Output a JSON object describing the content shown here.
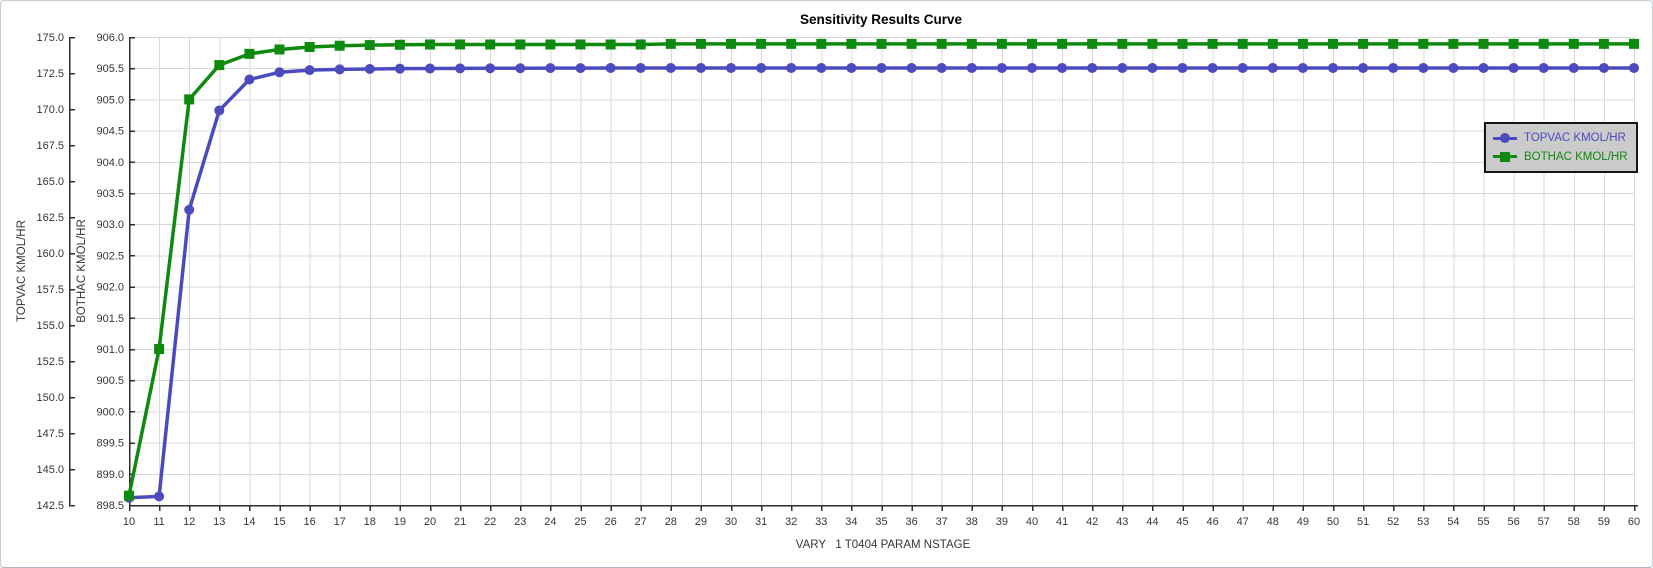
{
  "chart_data": {
    "type": "line",
    "title": "Sensitivity Results Curve",
    "xlabel": "VARY   1 T0404 PARAM NSTAGE",
    "x": [
      10,
      11,
      12,
      13,
      14,
      15,
      16,
      17,
      18,
      19,
      20,
      21,
      22,
      23,
      24,
      25,
      26,
      27,
      28,
      29,
      30,
      31,
      32,
      33,
      34,
      35,
      36,
      37,
      38,
      39,
      40,
      41,
      42,
      43,
      44,
      45,
      46,
      47,
      48,
      49,
      50,
      51,
      52,
      53,
      54,
      55,
      56,
      57,
      58,
      59,
      60
    ],
    "xlim": [
      10,
      60
    ],
    "x_tick_step": 1,
    "grid": true,
    "legend_position": "upper-right-inside",
    "axes": {
      "topvac": {
        "label": "TOPVAC KMOL/HR",
        "ylim": [
          142.5,
          175.0
        ],
        "tick_step": 2.5
      },
      "bothac": {
        "label": "BOTHAC KMOL/HR",
        "ylim": [
          898.5,
          906.0
        ],
        "tick_step": 0.5
      }
    },
    "series": [
      {
        "name": "TOPVAC KMOL/HR",
        "axis": "topvac",
        "color": "#4b4bbe",
        "marker": "circle",
        "values": [
          143.0,
          143.1,
          163.0,
          169.9,
          172.05,
          172.55,
          172.7,
          172.75,
          172.78,
          172.8,
          172.81,
          172.82,
          172.83,
          172.83,
          172.84,
          172.84,
          172.85,
          172.85,
          172.85,
          172.85,
          172.85,
          172.85,
          172.85,
          172.85,
          172.85,
          172.85,
          172.85,
          172.85,
          172.85,
          172.85,
          172.85,
          172.85,
          172.85,
          172.85,
          172.85,
          172.85,
          172.85,
          172.85,
          172.85,
          172.85,
          172.85,
          172.85,
          172.85,
          172.85,
          172.85,
          172.85,
          172.85,
          172.85,
          172.85,
          172.85,
          172.85
        ]
      },
      {
        "name": "BOTHAC KMOL/HR",
        "axis": "bothac",
        "color": "#0e8a0e",
        "marker": "square",
        "values": [
          898.65,
          901.0,
          905.0,
          905.55,
          905.73,
          905.8,
          905.84,
          905.86,
          905.87,
          905.875,
          905.88,
          905.88,
          905.88,
          905.88,
          905.88,
          905.88,
          905.88,
          905.88,
          905.89,
          905.89,
          905.89,
          905.89,
          905.89,
          905.89,
          905.89,
          905.89,
          905.89,
          905.89,
          905.89,
          905.89,
          905.89,
          905.89,
          905.89,
          905.89,
          905.89,
          905.89,
          905.89,
          905.89,
          905.89,
          905.89,
          905.89,
          905.89,
          905.89,
          905.89,
          905.89,
          905.89,
          905.89,
          905.89,
          905.89,
          905.89,
          905.89
        ]
      }
    ],
    "colors": {
      "grid": "#d8d8d8",
      "axis": "#2e2e2e",
      "tick_text": "#363636"
    }
  },
  "legend": {
    "background": "#cbcbcb",
    "border_color": "#151515"
  }
}
